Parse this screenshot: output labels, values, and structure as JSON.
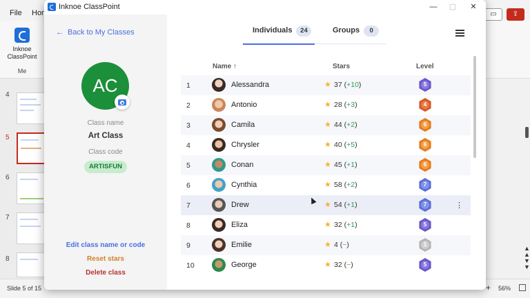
{
  "ppt": {
    "menu": [
      "File",
      "Home"
    ],
    "ribbon_button": {
      "line1": "Inknoe",
      "line2": "ClassPoint",
      "group": "Me"
    },
    "slide_numbers": [
      "4",
      "5",
      "6",
      "7",
      "8"
    ],
    "status_slide": "Slide 5 of 15",
    "zoom": "56%",
    "accent": "#c42b1c"
  },
  "dialog": {
    "title": "Inknoe ClassPoint",
    "controls": {
      "minimize": "—",
      "maximize": "▢",
      "close": "✕"
    }
  },
  "left": {
    "back_link": "Back to My Classes",
    "avatar_initials": "AC",
    "class_name_label": "Class name",
    "class_name": "Art Class",
    "class_code_label": "Class code",
    "class_code": "ARTISFUN",
    "edit_link": "Edit class name or code",
    "reset_link": "Reset stars",
    "delete_link": "Delete class"
  },
  "tabs": [
    {
      "label": "Individuals",
      "count": "24"
    },
    {
      "label": "Groups",
      "count": "0"
    }
  ],
  "table": {
    "headers": {
      "name": "Name",
      "sort_arrow": "↑",
      "stars": "Stars",
      "level": "Level"
    },
    "rows": [
      {
        "num": "1",
        "name": "Alessandra",
        "stars": "37",
        "delta": "+10",
        "level": "5"
      },
      {
        "num": "2",
        "name": "Antonio",
        "stars": "28",
        "delta": "+3",
        "level": "4"
      },
      {
        "num": "3",
        "name": "Camila",
        "stars": "44",
        "delta": "+2",
        "level": "6"
      },
      {
        "num": "4",
        "name": "Chrysler",
        "stars": "40",
        "delta": "+5",
        "level": "6"
      },
      {
        "num": "5",
        "name": "Conan",
        "stars": "45",
        "delta": "+1",
        "level": "6"
      },
      {
        "num": "6",
        "name": "Cynthia",
        "stars": "58",
        "delta": "+2",
        "level": "7"
      },
      {
        "num": "7",
        "name": "Drew",
        "stars": "54",
        "delta": "+1",
        "level": "7"
      },
      {
        "num": "8",
        "name": "Eliza",
        "stars": "32",
        "delta": "+1",
        "level": "5"
      },
      {
        "num": "9",
        "name": "Emilie",
        "stars": "4",
        "delta": "−",
        "level": "1"
      },
      {
        "num": "10",
        "name": "George",
        "stars": "32",
        "delta": "−",
        "level": "5"
      }
    ]
  },
  "colors": {
    "link_blue": "#4a6ee0",
    "green_avatar": "#1c8f3a",
    "level_5": "#6b57c9",
    "level_4": "#d35a2a",
    "level_6": "#e47b1e",
    "level_7": "#5b6fd6",
    "level_1": "#b5b5b5"
  }
}
